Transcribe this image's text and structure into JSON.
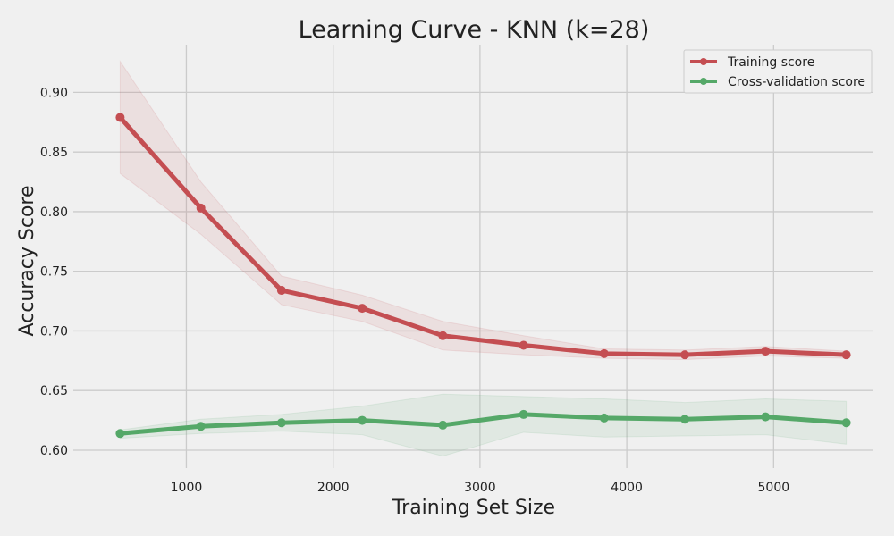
{
  "chart_data": {
    "type": "line",
    "title": "Learning Curve - KNN (k=28)",
    "xlabel": "Training Set Size",
    "ylabel": "Accuracy Score",
    "xlim": [
      230,
      5680
    ],
    "ylim": [
      0.585,
      0.94
    ],
    "xticks": [
      1000,
      2000,
      3000,
      4000,
      5000
    ],
    "yticks": [
      0.6,
      0.65,
      0.7,
      0.75,
      0.8,
      0.85,
      0.9
    ],
    "grid": true,
    "legend_position": "top-right",
    "x": [
      549,
      1099,
      1648,
      2198,
      2747,
      3297,
      3846,
      4396,
      4945,
      5495
    ],
    "series": [
      {
        "name": "Training score",
        "color": "#c44e52",
        "values": [
          0.879,
          0.803,
          0.734,
          0.719,
          0.696,
          0.688,
          0.681,
          0.68,
          0.683,
          0.68
        ],
        "lower": [
          0.832,
          0.781,
          0.722,
          0.708,
          0.684,
          0.68,
          0.677,
          0.676,
          0.679,
          0.677
        ],
        "upper": [
          0.926,
          0.825,
          0.746,
          0.73,
          0.708,
          0.696,
          0.685,
          0.684,
          0.687,
          0.683
        ]
      },
      {
        "name": "Cross-validation score",
        "color": "#55a868",
        "values": [
          0.614,
          0.62,
          0.623,
          0.625,
          0.621,
          0.63,
          0.627,
          0.626,
          0.628,
          0.623
        ],
        "lower": [
          0.61,
          0.614,
          0.616,
          0.613,
          0.595,
          0.615,
          0.611,
          0.612,
          0.613,
          0.605
        ],
        "upper": [
          0.617,
          0.626,
          0.63,
          0.637,
          0.647,
          0.645,
          0.643,
          0.64,
          0.643,
          0.641
        ]
      }
    ]
  }
}
